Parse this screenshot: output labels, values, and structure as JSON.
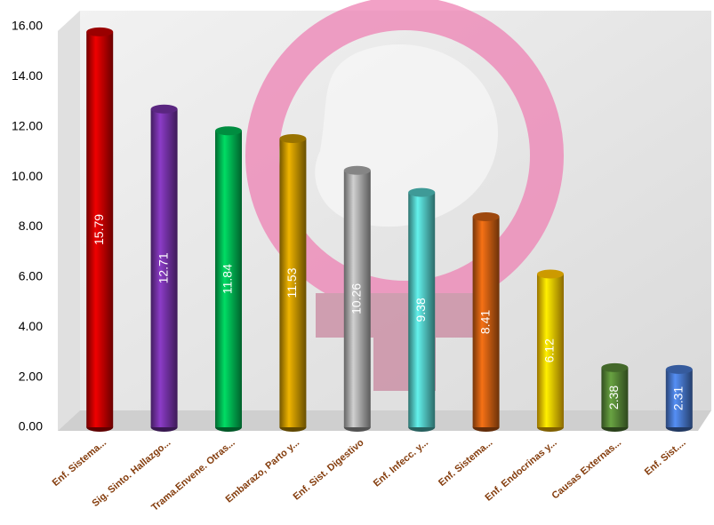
{
  "chart_data": {
    "type": "bar",
    "categories": [
      "Enf. Sistema...",
      "Sig. Sinto. Hallazgo...",
      "Trama.Envene. Otras...",
      "Embarazo, Parto y...",
      "Enf. Sist. Digestivo",
      "Enf. Infecc. y...",
      "Enf. Sistema...",
      "Enf. Endocrinas y...",
      "Causas Externas...",
      "Enf. Sist...."
    ],
    "values": [
      15.79,
      12.71,
      11.84,
      11.53,
      10.26,
      9.38,
      8.41,
      6.12,
      2.38,
      2.31
    ],
    "colors": [
      "#c00000",
      "#7030a0",
      "#00b050",
      "#bf9000",
      "#a6a6a6",
      "#4fc1bd",
      "#c55a11",
      "#ffc000",
      "#548235",
      "#4472c4"
    ],
    "ylim": [
      0,
      16
    ],
    "yticks": [
      {
        "value": 0,
        "label": "0.00"
      },
      {
        "value": 2,
        "label": "2.00"
      },
      {
        "value": 4,
        "label": "4.00"
      },
      {
        "value": 6,
        "label": "6.00"
      },
      {
        "value": 8,
        "label": "8.00"
      },
      {
        "value": 10,
        "label": "10.00"
      },
      {
        "value": 12,
        "label": "12.00"
      },
      {
        "value": 14,
        "label": "14.00"
      },
      {
        "value": 16,
        "label": "16.00"
      }
    ],
    "grid": false
  }
}
